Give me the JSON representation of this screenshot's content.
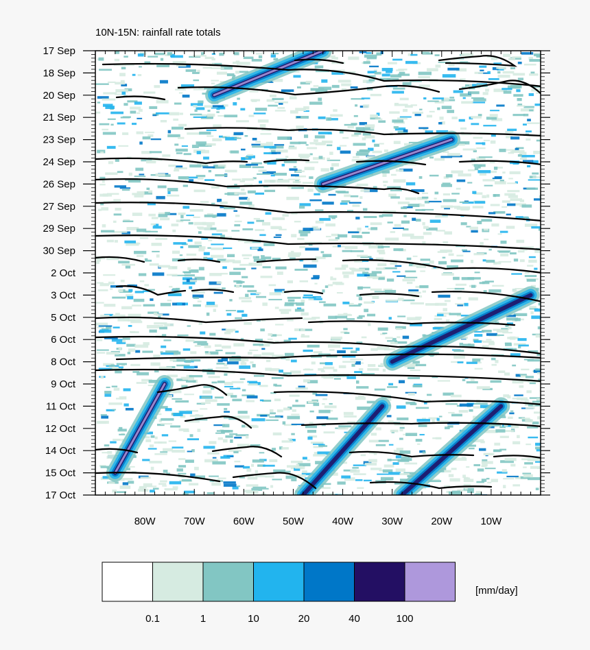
{
  "chart_data": {
    "type": "heatmap",
    "title": "10N-15N: rainfall rate totals",
    "xlabel": "",
    "ylabel": "",
    "x_ticks": [
      "80W",
      "70W",
      "60W",
      "50W",
      "40W",
      "30W",
      "20W",
      "10W"
    ],
    "x_tick_values": [
      -80,
      -70,
      -60,
      -50,
      -40,
      -30,
      -20,
      -10
    ],
    "xlim": [
      -90,
      0
    ],
    "y_ticks": [
      "17 Sep",
      "18 Sep",
      "20 Sep",
      "21 Sep",
      "23 Sep",
      "24 Sep",
      "26 Sep",
      "27 Sep",
      "29 Sep",
      "30 Sep",
      "2 Oct",
      "3 Oct",
      "5 Oct",
      "6 Oct",
      "8 Oct",
      "9 Oct",
      "11 Oct",
      "12 Oct",
      "14 Oct",
      "15 Oct",
      "17 Oct"
    ],
    "ylim": [
      "17 Sep",
      "17 Oct"
    ],
    "y_direction": "time increases downward",
    "colorbar": {
      "unit_label": "[mm/day]",
      "levels": [
        "0.1",
        "1",
        "10",
        "20",
        "40",
        "100"
      ],
      "colors": [
        "#ffffff",
        "#d6ebe1",
        "#82c6c3",
        "#22b4ee",
        "#0077c8",
        "#230f63",
        "#ae98dc"
      ]
    },
    "rain_streaks": [
      {
        "from": [
          "-66",
          "20 Sep"
        ],
        "to": [
          "-44",
          "17 Sep"
        ],
        "peak_class": "100"
      },
      {
        "from": [
          "-44",
          "26 Sep"
        ],
        "to": [
          "-18",
          "23 Sep"
        ],
        "peak_class": "100"
      },
      {
        "from": [
          "-86",
          "15 Oct"
        ],
        "to": [
          "-76",
          "9 Oct"
        ],
        "peak_class": "100"
      },
      {
        "from": [
          "-48",
          "17 Oct"
        ],
        "to": [
          "-32",
          "11 Oct"
        ],
        "peak_class": "40"
      },
      {
        "from": [
          "-28",
          "17 Oct"
        ],
        "to": [
          "-8",
          "11 Oct"
        ],
        "peak_class": "40"
      },
      {
        "from": [
          "-30",
          "8 Oct"
        ],
        "to": [
          "-2",
          "3 Oct"
        ],
        "peak_class": "40"
      }
    ],
    "contour_color": "#000000",
    "grid": false,
    "legend_placement": "bottom"
  }
}
